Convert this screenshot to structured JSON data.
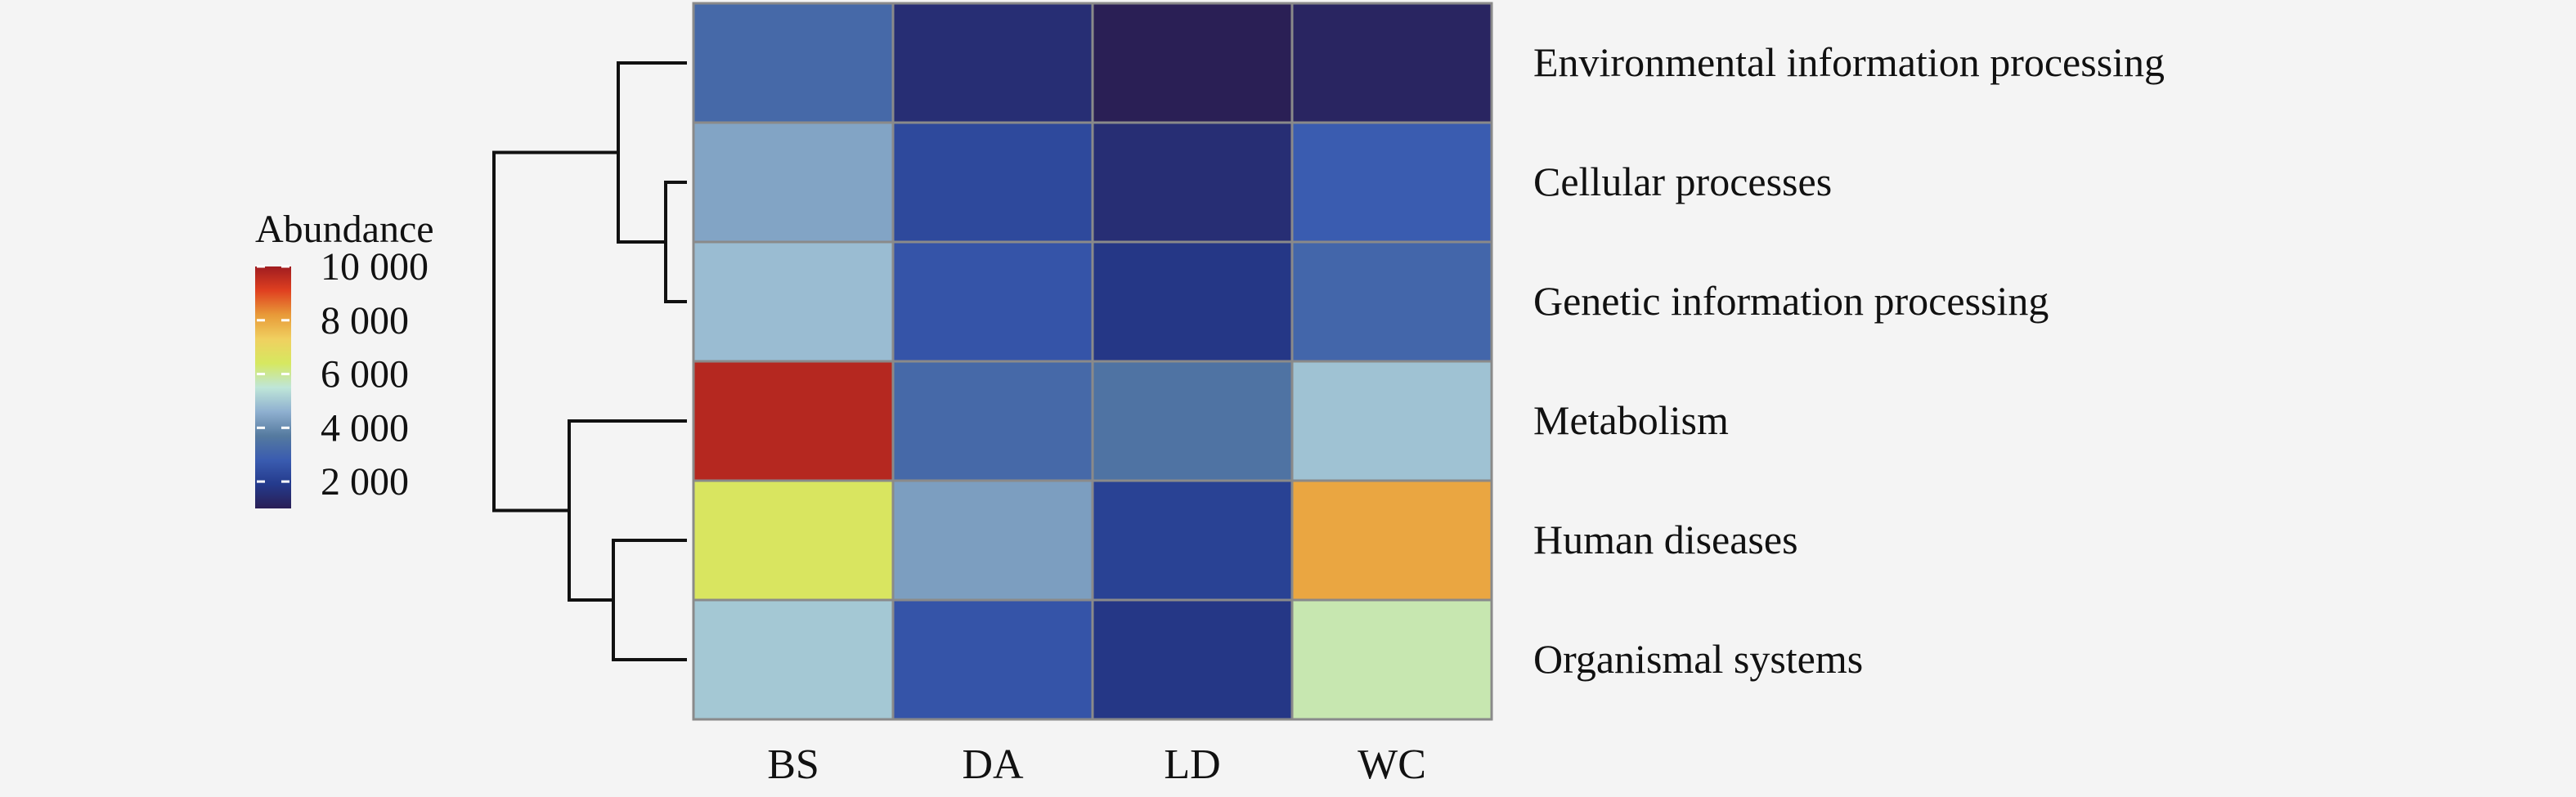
{
  "chart_data": {
    "type": "heatmap",
    "title": "",
    "xlabel": "",
    "ylabel": "",
    "columns": [
      "BS",
      "DA",
      "LD",
      "WC"
    ],
    "rows": [
      "Environmental information processing",
      "Cellular processes",
      "Genetic information processing",
      "Metabolism",
      "Human diseases",
      "Organismal systems"
    ],
    "values": [
      [
        3200,
        1500,
        800,
        1200
      ],
      [
        4400,
        2300,
        1500,
        2800
      ],
      [
        4800,
        2600,
        1800,
        3100
      ],
      [
        9700,
        3200,
        3500,
        4900
      ],
      [
        6500,
        4300,
        2100,
        8000
      ],
      [
        5000,
        2600,
        1800,
        5800
      ]
    ],
    "legend": {
      "title": "Abundance",
      "ticks": [
        "10 000",
        "8 000",
        "6 000",
        "4 000",
        "2 000"
      ],
      "tick_values": [
        10000,
        8000,
        6000,
        4000,
        2000
      ],
      "range": [
        1000,
        10000
      ],
      "placement": "left"
    },
    "dendrogram": {
      "placement": "left",
      "clusters": [
        [
          [
            "Environmental information processing"
          ],
          [
            "Cellular processes",
            "Genetic information processing"
          ]
        ],
        [
          [
            "Metabolism"
          ],
          [
            "Human diseases",
            "Organismal systems"
          ]
        ]
      ]
    },
    "colorscale": [
      "#2a1f55",
      "#243a8c",
      "#3a5cb0",
      "#557a9f",
      "#8fb0d0",
      "#bfe6d8",
      "#d6e860",
      "#f0d060",
      "#e89a38",
      "#e04020",
      "#a01c20"
    ]
  }
}
